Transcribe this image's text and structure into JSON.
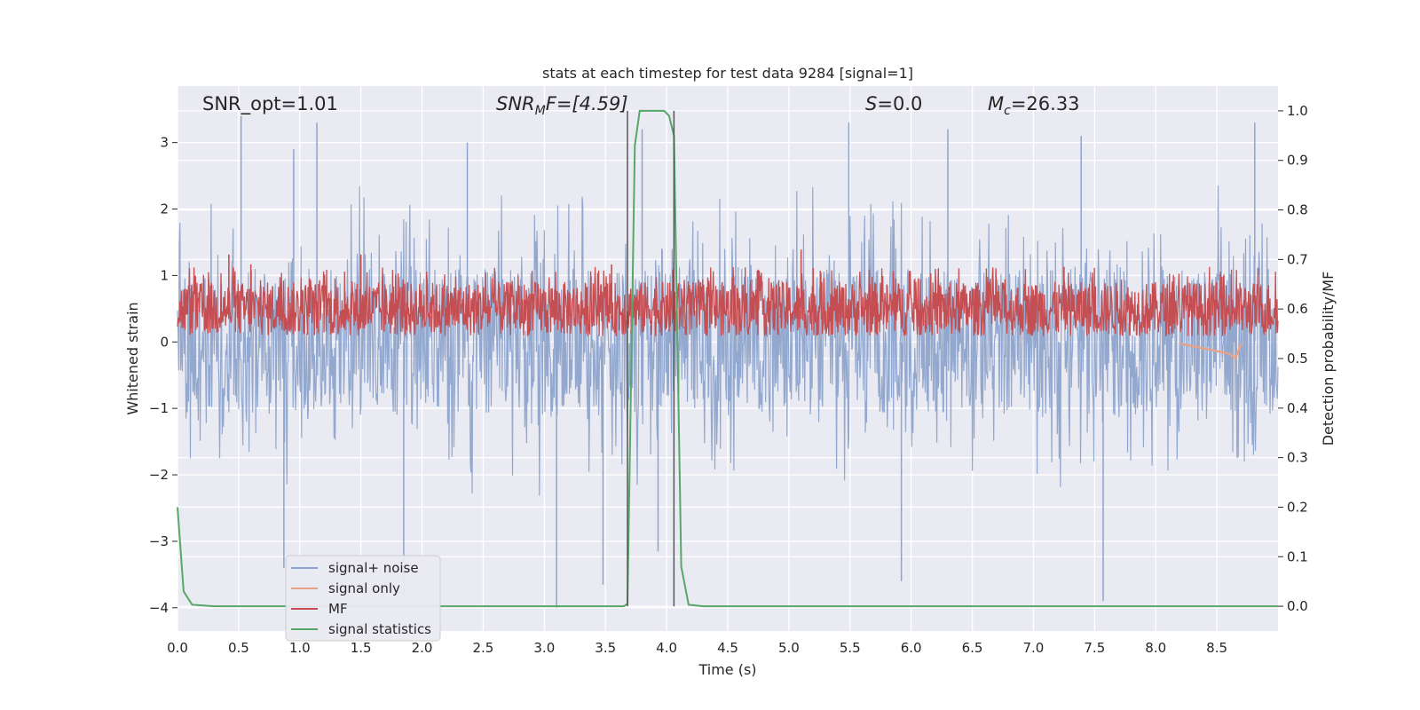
{
  "chart_data": {
    "type": "line",
    "title": "stats at each timestep for test data 9284 [signal=1]",
    "xlabel": "Time (s)",
    "ylabel_left": "Whitened strain",
    "ylabel_right": "Detection probability/MF",
    "xlim": [
      0.0,
      9.0
    ],
    "ylim_left": [
      -4.35,
      3.85
    ],
    "ylim_right": [
      -0.05,
      1.05
    ],
    "x_ticks": [
      "0.0",
      "0.5",
      "1.0",
      "1.5",
      "2.0",
      "2.5",
      "3.0",
      "3.5",
      "4.0",
      "4.5",
      "5.0",
      "5.5",
      "6.0",
      "6.5",
      "7.0",
      "7.5",
      "8.0",
      "8.5"
    ],
    "y_left_ticks": [
      "3",
      "2",
      "1",
      "0",
      "−1",
      "−2",
      "−3",
      "−4"
    ],
    "y_right_ticks": [
      "1.0",
      "0.9",
      "0.8",
      "0.7",
      "0.6",
      "0.5",
      "0.4",
      "0.3",
      "0.2",
      "0.1",
      "0.0"
    ],
    "grid": true,
    "legend_placement": "lower-left",
    "annotations": {
      "snr_opt": "SNR_opt=1.01",
      "snr_mf_main": "SNR",
      "snr_mf_sub": "M",
      "snr_mf_rest": "F=[4.59]",
      "s_italic": "S",
      "s_rest": "=0.0",
      "mc_italic": "M",
      "mc_sub": "c",
      "mc_rest": "=26.33"
    },
    "vertical_markers_x": [
      3.68,
      4.06
    ],
    "series": [
      {
        "name": "signal+ noise",
        "axis": "left",
        "color": "#8da4cc",
        "description_range": [
          -3.9,
          3.5
        ],
        "spike_peaks": [
          [
            0.52,
            3.4
          ],
          [
            1.14,
            3.3
          ],
          [
            0.95,
            2.9
          ],
          [
            2.37,
            3.0
          ],
          [
            3.8,
            3.2
          ],
          [
            5.49,
            3.3
          ],
          [
            6.3,
            3.2
          ],
          [
            7.39,
            3.1
          ],
          [
            8.81,
            3.3
          ],
          [
            0.87,
            -3.4
          ],
          [
            1.85,
            -3.8
          ],
          [
            3.1,
            -4.0
          ],
          [
            3.93,
            -3.15
          ],
          [
            7.57,
            -3.9
          ],
          [
            5.92,
            -3.6
          ],
          [
            3.48,
            -3.65
          ]
        ]
      },
      {
        "name": "signal only",
        "axis": "right",
        "color": "#e6a38a",
        "points": [
          [
            8.2,
            0.53
          ],
          [
            8.3,
            0.525
          ],
          [
            8.4,
            0.52
          ],
          [
            8.5,
            0.515
          ],
          [
            8.6,
            0.51
          ],
          [
            8.65,
            0.5
          ],
          [
            8.7,
            0.53
          ]
        ]
      },
      {
        "name": "MF",
        "axis": "right",
        "color": "#c44e52",
        "baseline_range": [
          0.545,
          0.655
        ],
        "spike_peaks": [
          [
            0.42,
            0.71
          ],
          [
            1.5,
            0.71
          ],
          [
            5.1,
            0.72
          ],
          [
            3.55,
            0.69
          ],
          [
            0.6,
            0.69
          ],
          [
            4.05,
            0.68
          ],
          [
            7.25,
            0.685
          ]
        ]
      },
      {
        "name": "signal statistics",
        "axis": "right",
        "color": "#55a868",
        "points": [
          [
            0.0,
            0.2
          ],
          [
            0.05,
            0.03
          ],
          [
            0.12,
            0.003
          ],
          [
            0.3,
            0.0
          ],
          [
            3.65,
            0.0
          ],
          [
            3.68,
            0.005
          ],
          [
            3.74,
            0.93
          ],
          [
            3.78,
            1.0
          ],
          [
            3.98,
            1.0
          ],
          [
            4.02,
            0.99
          ],
          [
            4.06,
            0.95
          ],
          [
            4.12,
            0.08
          ],
          [
            4.18,
            0.003
          ],
          [
            4.3,
            0.0
          ],
          [
            9.0,
            0.0
          ]
        ]
      }
    ]
  }
}
